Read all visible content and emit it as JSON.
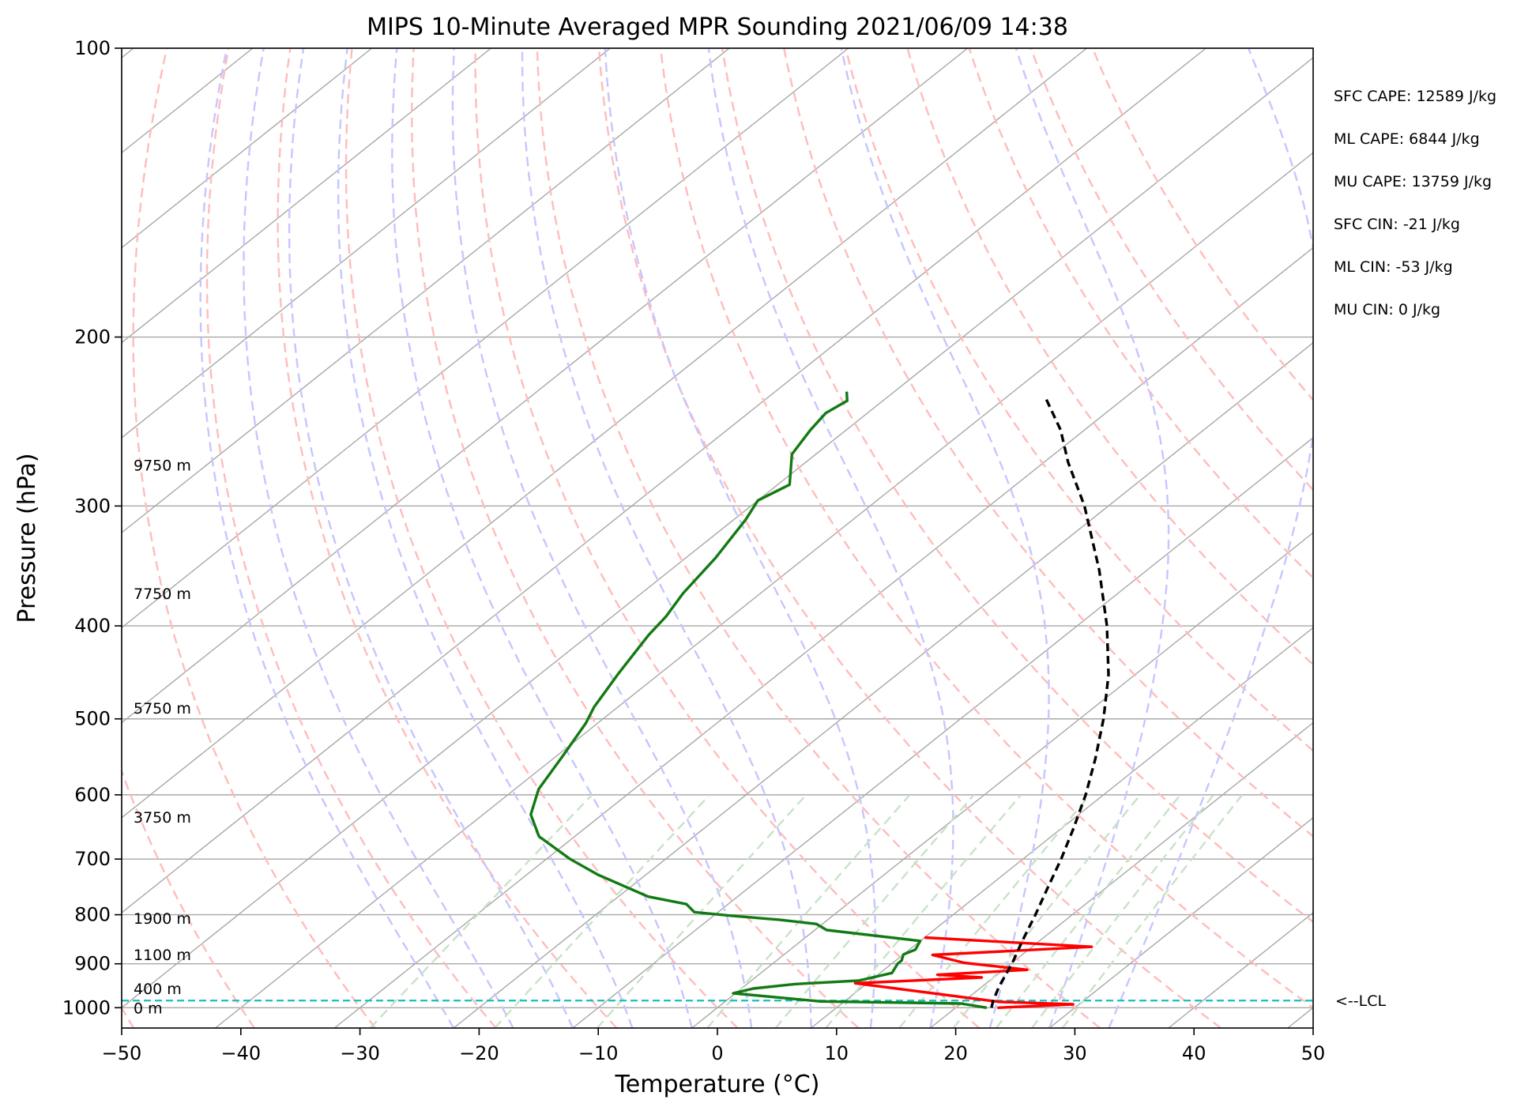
{
  "chart_data": {
    "type": "line",
    "title": "MIPS 10-Minute Averaged MPR Sounding 2021/06/09 14:38",
    "xlabel": "Temperature (°C)",
    "ylabel": "Pressure (hPa)",
    "xlim": [
      -50,
      50
    ],
    "ylim": [
      1050,
      100
    ],
    "y_scale": "log",
    "skew_degrees_per_decade": 101,
    "x_ticks": [
      -50,
      -40,
      -30,
      -20,
      -10,
      0,
      10,
      20,
      30,
      40,
      50
    ],
    "x_tick_labels": [
      "−50",
      "−40",
      "−30",
      "−20",
      "−10",
      "0",
      "10",
      "20",
      "30",
      "40",
      "50"
    ],
    "y_ticks": [
      100,
      200,
      300,
      400,
      500,
      600,
      700,
      800,
      900,
      1000
    ],
    "y_tick_labels": [
      "100",
      "200",
      "300",
      "400",
      "500",
      "600",
      "700",
      "800",
      "900",
      "1000"
    ],
    "grid": true,
    "colors": {
      "temperature": "#ff0000",
      "dewpoint": "#137a13",
      "parcel": "#000000",
      "lcl": "#17bebe",
      "isotherm": "#a8a8a8",
      "dry_adiabat": "#ffbcbc",
      "moist_adiabat": "#c6c6ff",
      "mixing_ratio": "#c8e2c8"
    },
    "height_labels": [
      {
        "p": 1000,
        "text": "0 m"
      },
      {
        "p": 955,
        "text": "400 m"
      },
      {
        "p": 880,
        "text": "1100 m"
      },
      {
        "p": 807,
        "text": "1900 m"
      },
      {
        "p": 633,
        "text": "3750 m"
      },
      {
        "p": 487,
        "text": "5750 m"
      },
      {
        "p": 370,
        "text": "7750 m"
      },
      {
        "p": 272,
        "text": "9750 m"
      }
    ],
    "lcl": {
      "p": 983,
      "label": "<--LCL"
    },
    "stats": [
      "SFC CAPE: 12589 J/kg",
      "ML CAPE: 6844 J/kg",
      "MU CAPE: 13759 J/kg",
      "SFC CIN: -21 J/kg",
      "ML CIN: -53 J/kg",
      "MU CIN: 0 J/kg"
    ],
    "series": [
      {
        "name": "Temperature",
        "points": [
          [
            1000,
            23.5
          ],
          [
            992,
            29.5
          ],
          [
            986,
            23.0
          ],
          [
            943,
            9.0
          ],
          [
            930,
            19.0
          ],
          [
            924,
            15.0
          ],
          [
            913,
            22.0
          ],
          [
            898,
            16.0
          ],
          [
            881,
            12.5
          ],
          [
            864,
            25.0
          ],
          [
            845,
            10.0
          ]
        ]
      },
      {
        "name": "Dewpoint",
        "points": [
          [
            1000,
            22.6
          ],
          [
            990,
            20.0
          ],
          [
            985,
            8.0
          ],
          [
            966,
            -0.2
          ],
          [
            955,
            1.0
          ],
          [
            945,
            4.0
          ],
          [
            937,
            9.0
          ],
          [
            920,
            11.0
          ],
          [
            900,
            10.5
          ],
          [
            893,
            10.5
          ],
          [
            880,
            10.0
          ],
          [
            870,
            10.5
          ],
          [
            852,
            10.0
          ],
          [
            830,
            1.0
          ],
          [
            818,
            -0.5
          ],
          [
            810,
            -4.0
          ],
          [
            802,
            -8.5
          ],
          [
            795,
            -12.0
          ],
          [
            780,
            -13.5
          ],
          [
            766,
            -17.5
          ],
          [
            727,
            -24.0
          ],
          [
            700,
            -28.0
          ],
          [
            663,
            -33.0
          ],
          [
            629,
            -36.0
          ],
          [
            592,
            -38.0
          ],
          [
            546,
            -39.5
          ],
          [
            505,
            -41.0
          ],
          [
            486,
            -42.0
          ],
          [
            448,
            -43.5
          ],
          [
            409,
            -45.0
          ],
          [
            391,
            -45.5
          ],
          [
            370,
            -46.5
          ],
          [
            340,
            -47.5
          ],
          [
            310,
            -49.0
          ],
          [
            296,
            -50.0
          ],
          [
            285,
            -49.0
          ],
          [
            265,
            -52.0
          ],
          [
            250,
            -53.0
          ],
          [
            240,
            -53.5
          ],
          [
            233,
            -53.0
          ],
          [
            228,
            -54.0
          ]
        ]
      },
      {
        "name": "Parcel",
        "points": [
          [
            1000,
            23.0
          ],
          [
            983,
            22.4
          ],
          [
            950,
            21.4
          ],
          [
            900,
            20.1
          ],
          [
            850,
            18.5
          ],
          [
            800,
            16.9
          ],
          [
            750,
            15.1
          ],
          [
            700,
            13.2
          ],
          [
            650,
            11.0
          ],
          [
            600,
            8.5
          ],
          [
            550,
            5.5
          ],
          [
            500,
            2.0
          ],
          [
            450,
            -2.2
          ],
          [
            400,
            -7.5
          ],
          [
            350,
            -14.0
          ],
          [
            300,
            -22.0
          ],
          [
            270,
            -28.0
          ],
          [
            250,
            -32.0
          ],
          [
            232,
            -36.5
          ]
        ]
      }
    ],
    "isotherms": [
      -170,
      -160,
      -150,
      -140,
      -130,
      -120,
      -110,
      -100,
      -90,
      -80,
      -70,
      -60,
      -50,
      -40,
      -30,
      -20,
      -10,
      0,
      10,
      20,
      30,
      40,
      50
    ],
    "dry_adiabats_c": [
      -50,
      -40,
      -30,
      -20,
      -10,
      0,
      10,
      20,
      30,
      40,
      50,
      60,
      70,
      80,
      90,
      100,
      110,
      120
    ],
    "moist_adiabats_c": [
      -20,
      -15,
      -10,
      -5,
      0,
      5,
      10,
      15,
      20,
      25,
      30,
      35
    ],
    "mixing_ratios_gkg": [
      0.4,
      1,
      2,
      4,
      6,
      8,
      12,
      16,
      20,
      24,
      28
    ]
  }
}
